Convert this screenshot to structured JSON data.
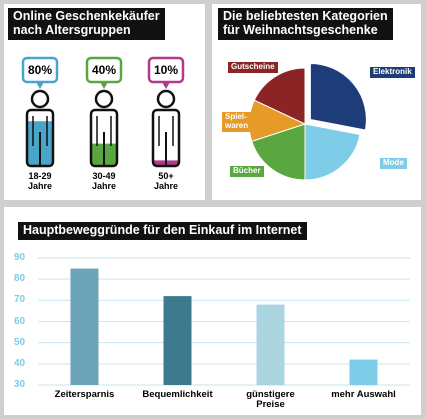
{
  "chart_data": [
    {
      "type": "pictogram",
      "title": "Online Geschenkekäufer\nnach Altersgruppen",
      "categories": [
        "18-29\nJahre",
        "30-49\nJahre",
        "50+\nJahre"
      ],
      "values": [
        80,
        40,
        10
      ],
      "value_labels": [
        "80%",
        "40%",
        "10%"
      ],
      "colors": [
        "#4aa6c9",
        "#5aa641",
        "#b03a8c"
      ]
    },
    {
      "type": "pie",
      "title": "Die beliebtesten Kategorien\nfür Weihnachtsgeschenke",
      "categories": [
        "Elektronik",
        "Mode",
        "Bücher",
        "Spiel-\nwaren",
        "Gutscheine"
      ],
      "values": [
        28,
        22,
        20,
        12,
        18
      ],
      "colors": [
        "#1f3c7a",
        "#7ecde8",
        "#5aa641",
        "#e59a2a",
        "#8b2525"
      ]
    },
    {
      "type": "bar",
      "title": "Hauptbeweggründe für den Einkauf im Internet",
      "categories": [
        "Zeitersparnis",
        "Bequemlichkeit",
        "günstigere\nPreise",
        "mehr Auswahl"
      ],
      "values": [
        85,
        72,
        68,
        42
      ],
      "colors": [
        "#6ba3b8",
        "#3d7a8e",
        "#a9d4e0",
        "#7ecde8"
      ],
      "ylim": [
        30,
        90
      ],
      "yticks": [
        30,
        40,
        50,
        60,
        70,
        80,
        90
      ],
      "grid": true
    }
  ]
}
